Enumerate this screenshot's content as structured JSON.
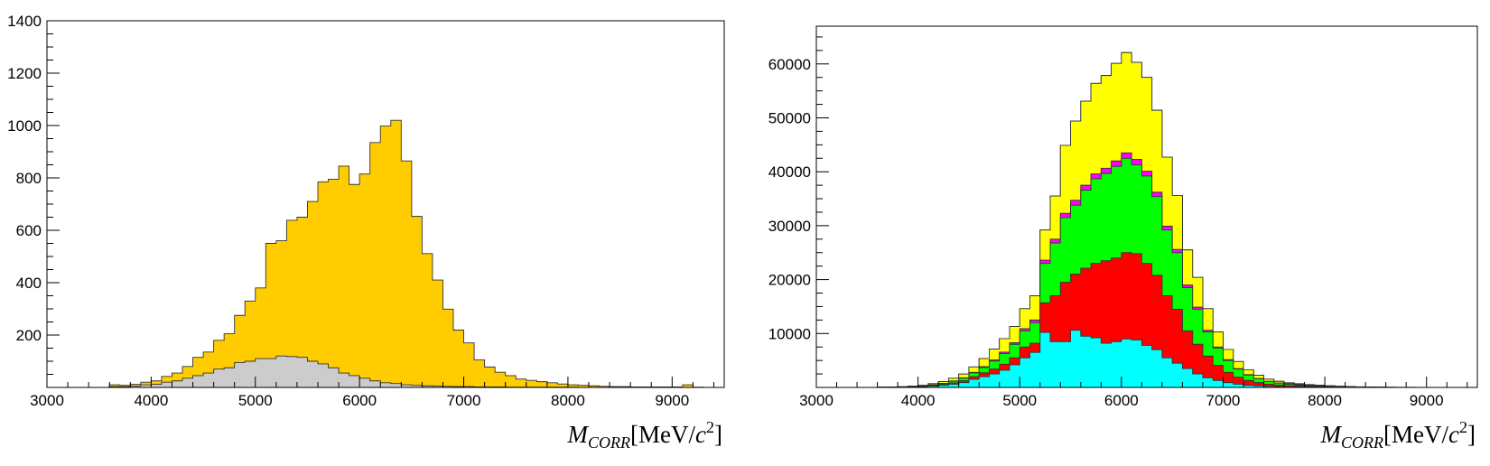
{
  "chart_data": [
    {
      "type": "histogram-stacked",
      "xlabel_parts": {
        "main": "M",
        "sub": "CORR",
        "unit": "[MeV/c",
        "sup": "2",
        "close": "]"
      },
      "xlim": [
        3000,
        9500
      ],
      "ylim": [
        0,
        1400
      ],
      "x_ticks": [
        3000,
        4000,
        5000,
        6000,
        7000,
        8000,
        9000
      ],
      "y_ticks": [
        200,
        400,
        600,
        800,
        1000,
        1200,
        1400
      ],
      "bin_start": 3600,
      "bin_width": 100,
      "series": [
        {
          "color": "#cccccc",
          "values": [
            3,
            3,
            5,
            10,
            12,
            20,
            25,
            35,
            45,
            55,
            70,
            75,
            95,
            100,
            110,
            110,
            120,
            118,
            115,
            100,
            90,
            75,
            55,
            45,
            35,
            25,
            18,
            15,
            10,
            8,
            6,
            5,
            4,
            3,
            3,
            2,
            2,
            2,
            1,
            1,
            1,
            1,
            1,
            1,
            1,
            0,
            0,
            0,
            0,
            0,
            0,
            0,
            0,
            0,
            0,
            0,
            0,
            0
          ]
        },
        {
          "color": "#ffcc00",
          "values": [
            7,
            5,
            7,
            10,
            13,
            22,
            30,
            45,
            70,
            80,
            110,
            130,
            180,
            230,
            270,
            440,
            440,
            520,
            535,
            610,
            695,
            720,
            790,
            730,
            780,
            910,
            980,
            1005,
            855,
            645,
            505,
            405,
            295,
            216,
            167,
            103,
            76,
            56,
            44,
            31,
            26,
            21,
            17,
            12,
            9,
            8,
            6,
            4,
            3,
            3,
            2,
            2,
            2,
            2,
            2,
            10,
            1,
            0
          ]
        }
      ]
    },
    {
      "type": "histogram-stacked",
      "xlabel_parts": {
        "main": "M",
        "sub": "CORR",
        "unit": "[MeV/c",
        "sup": "2",
        "close": "]"
      },
      "xlim": [
        3000,
        9500
      ],
      "ylim": [
        0,
        67000
      ],
      "x_ticks": [
        3000,
        4000,
        5000,
        6000,
        7000,
        8000,
        9000
      ],
      "y_ticks": [
        10000,
        20000,
        30000,
        40000,
        50000,
        60000
      ],
      "bin_start": 3600,
      "bin_width": 100,
      "series": [
        {
          "color": "#00ffff",
          "values": [
            20,
            30,
            50,
            100,
            150,
            250,
            400,
            600,
            900,
            1500,
            2000,
            2500,
            3200,
            4200,
            5500,
            6500,
            10200,
            8500,
            8500,
            10600,
            9500,
            9200,
            8200,
            8500,
            9000,
            8800,
            7800,
            7000,
            5500,
            4500,
            3500,
            2500,
            1800,
            1300,
            900,
            600,
            400,
            300,
            200,
            150,
            100,
            80,
            60,
            40,
            30,
            20,
            15,
            10,
            8,
            5,
            4,
            3,
            2,
            2,
            1,
            1,
            1,
            1
          ]
        },
        {
          "color": "#ff0000",
          "values": [
            5,
            10,
            20,
            40,
            60,
            100,
            150,
            250,
            350,
            500,
            700,
            900,
            1100,
            1300,
            2000,
            1700,
            5500,
            8500,
            11000,
            10400,
            12600,
            13800,
            15300,
            15500,
            16000,
            16000,
            15200,
            13800,
            11500,
            10000,
            7000,
            5500,
            4000,
            2800,
            1900,
            1300,
            900,
            600,
            400,
            300,
            200,
            150,
            100,
            70,
            50,
            35,
            25,
            15,
            10,
            8,
            5,
            4,
            3,
            2,
            2,
            1,
            1,
            1
          ]
        },
        {
          "color": "#00ff00",
          "values": [
            5,
            10,
            20,
            40,
            70,
            120,
            180,
            300,
            450,
            700,
            1000,
            1500,
            2000,
            2500,
            3000,
            3800,
            7300,
            9800,
            12000,
            12800,
            14500,
            15700,
            16200,
            17000,
            17500,
            16500,
            16200,
            14600,
            12200,
            10500,
            8000,
            6500,
            4500,
            3200,
            2200,
            1500,
            1000,
            700,
            500,
            350,
            250,
            180,
            120,
            80,
            60,
            40,
            30,
            20,
            15,
            10,
            8,
            5,
            4,
            3,
            2,
            2,
            1,
            1
          ]
        },
        {
          "color": "#ff00ff",
          "values": [
            2,
            3,
            5,
            10,
            15,
            25,
            40,
            60,
            80,
            100,
            150,
            200,
            250,
            300,
            400,
            500,
            600,
            700,
            800,
            900,
            900,
            900,
            950,
            1000,
            1000,
            1000,
            900,
            800,
            700,
            600,
            500,
            400,
            300,
            200,
            150,
            100,
            80,
            60,
            40,
            30,
            20,
            15,
            10,
            8,
            5,
            4,
            3,
            2,
            2,
            1,
            1,
            1,
            1,
            1,
            1,
            1,
            1,
            1
          ]
        },
        {
          "color": "#ffff00",
          "values": [
            10,
            15,
            30,
            60,
            100,
            200,
            300,
            500,
            700,
            1000,
            1500,
            2000,
            2500,
            3000,
            3700,
            4500,
            5600,
            8000,
            12600,
            14700,
            15600,
            16800,
            17200,
            18100,
            18600,
            18000,
            17400,
            15200,
            12800,
            10000,
            6500,
            5500,
            4000,
            2800,
            1900,
            1300,
            900,
            600,
            400,
            300,
            200,
            150,
            100,
            70,
            50,
            35,
            25,
            15,
            10,
            8,
            5,
            4,
            3,
            2,
            2,
            1,
            1,
            1
          ]
        },
        {
          "color": "#0000ff",
          "values": [
            0,
            0,
            0,
            0,
            0,
            0,
            0,
            0,
            0,
            0,
            0,
            0,
            0,
            0,
            0,
            0,
            0,
            0,
            0,
            0,
            0,
            0,
            0,
            0,
            0,
            0,
            0,
            0,
            0,
            0,
            0,
            0,
            0,
            0,
            0,
            0,
            0,
            0,
            0,
            0,
            100,
            120,
            150,
            150,
            120,
            100,
            80,
            60,
            40,
            30,
            20,
            15,
            10,
            8,
            5,
            4,
            3,
            2
          ]
        }
      ]
    }
  ]
}
